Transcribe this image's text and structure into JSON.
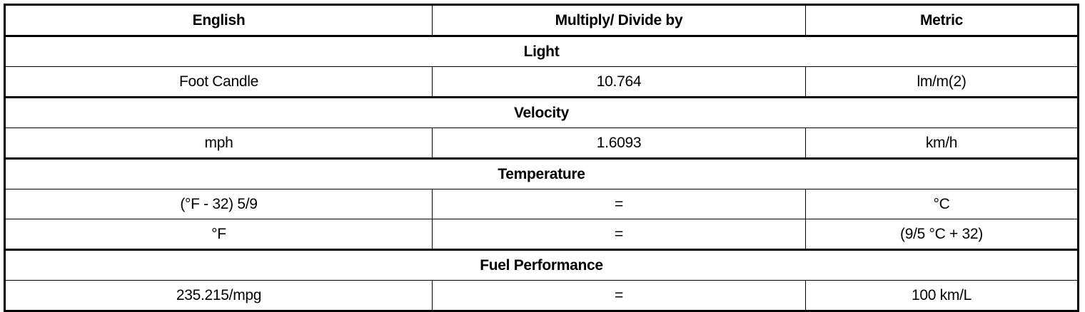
{
  "headers": [
    "English",
    "Multiply/ Divide by",
    "Metric"
  ],
  "sections": [
    {
      "title": "Light",
      "rows": [
        [
          "Foot Candle",
          "10.764",
          "lm/m(2)"
        ]
      ]
    },
    {
      "title": "Velocity",
      "rows": [
        [
          "mph",
          "1.6093",
          "km/h"
        ]
      ]
    },
    {
      "title": "Temperature",
      "rows": [
        [
          "(°F - 32) 5/9",
          "=",
          "°C"
        ],
        [
          "°F",
          "=",
          "(9/5 °C + 32)"
        ]
      ]
    },
    {
      "title": "Fuel Performance",
      "rows": [
        [
          "235.215/mpg",
          "=",
          "100 km/L"
        ]
      ]
    }
  ]
}
